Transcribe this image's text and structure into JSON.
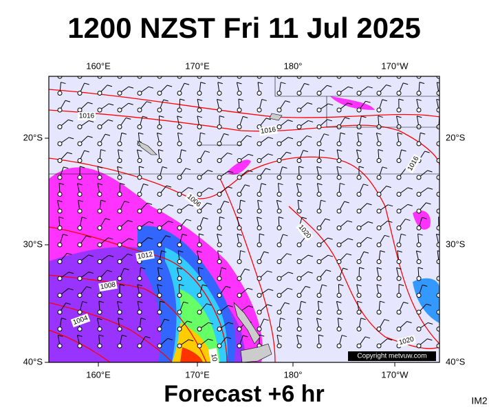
{
  "header": {
    "title": "1200 NZST Fri 11 Jul 2025"
  },
  "map": {
    "top_labels": [
      "160°E",
      "170°E",
      "180°",
      "170°W"
    ],
    "bottom_labels": [
      "160°E",
      "170°E",
      "180°",
      "170°W"
    ],
    "left_labels": [
      "20°S",
      "30°S",
      "40°S"
    ],
    "right_labels": [
      "20°S",
      "30°S",
      "40°S"
    ],
    "isobar_labels": [
      "1016",
      "1016",
      "1016",
      "1006",
      "1020",
      "1012",
      "1008",
      "1004",
      "1020",
      "10"
    ],
    "copyright": "Copyright metvuw.com"
  },
  "footer": {
    "caption": "Forecast +6 hr",
    "code": "IM2"
  }
}
